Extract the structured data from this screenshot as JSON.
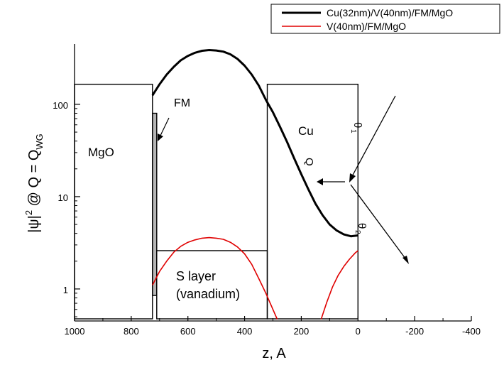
{
  "chart_data": {
    "type": "line",
    "xlabel": "z, A",
    "ylabel": "|ψ|² @ Q = Q_WG",
    "ylabel_parts": {
      "psi": "|ψ|",
      "sq": "2",
      "mid": " @ Q = Q",
      "sub": "WG"
    },
    "x_axis": {
      "range": [
        1000,
        -400
      ],
      "ticks": [
        1000,
        800,
        600,
        400,
        200,
        0,
        -200,
        -400
      ],
      "reversed": true
    },
    "y_axis": {
      "scale": "log",
      "range": [
        0.45,
        450
      ],
      "ticks": [
        1,
        10,
        100
      ],
      "tick_labels": [
        "1",
        "10",
        "100"
      ]
    },
    "series": [
      {
        "name": "Cu(32nm)/V(40nm)/FM/MgO",
        "color": "#000000",
        "points": [
          [
            725,
            125
          ],
          [
            700,
            165
          ],
          [
            675,
            210
          ],
          [
            650,
            255
          ],
          [
            625,
            300
          ],
          [
            600,
            335
          ],
          [
            575,
            362
          ],
          [
            550,
            380
          ],
          [
            525,
            387
          ],
          [
            500,
            383
          ],
          [
            475,
            372
          ],
          [
            450,
            348
          ],
          [
            425,
            310
          ],
          [
            400,
            262
          ],
          [
            375,
            210
          ],
          [
            350,
            160
          ],
          [
            325,
            112
          ],
          [
            300,
            82
          ],
          [
            275,
            57
          ],
          [
            250,
            39
          ],
          [
            225,
            26
          ],
          [
            200,
            17.5
          ],
          [
            175,
            12
          ],
          [
            150,
            8.4
          ],
          [
            125,
            6.3
          ],
          [
            100,
            5.0
          ],
          [
            75,
            4.3
          ],
          [
            50,
            3.9
          ],
          [
            25,
            3.72
          ],
          [
            0,
            3.8
          ]
        ]
      },
      {
        "name": "V(40nm)/FM/MgO",
        "color": "#e00000",
        "points": [
          [
            725,
            1.1
          ],
          [
            700,
            1.55
          ],
          [
            675,
            2.0
          ],
          [
            650,
            2.5
          ],
          [
            625,
            2.9
          ],
          [
            600,
            3.2
          ],
          [
            575,
            3.4
          ],
          [
            550,
            3.55
          ],
          [
            525,
            3.6
          ],
          [
            500,
            3.55
          ],
          [
            475,
            3.45
          ],
          [
            450,
            3.2
          ],
          [
            425,
            2.85
          ],
          [
            400,
            2.4
          ],
          [
            375,
            1.85
          ],
          [
            350,
            1.3
          ],
          [
            325,
            0.9
          ],
          [
            300,
            0.6
          ],
          [
            285,
            0.47
          ]
        ],
        "points2": [
          [
            130,
            0.47
          ],
          [
            110,
            0.72
          ],
          [
            90,
            1.05
          ],
          [
            70,
            1.4
          ],
          [
            50,
            1.75
          ],
          [
            30,
            2.1
          ],
          [
            10,
            2.45
          ],
          [
            0,
            2.6
          ]
        ]
      }
    ],
    "legend": {
      "position": "top-right"
    },
    "annotations": {
      "mgo": "MgO",
      "fm": "FM",
      "cu": "Cu",
      "s_layer_1": "S layer",
      "s_layer_2": "(vanadium)",
      "q": "Q",
      "theta": "θ",
      "theta1_sub": "1",
      "theta2_sub": "2"
    },
    "layers": [
      {
        "label": "MgO",
        "z_start": 1000,
        "z_end": 725,
        "top": 165
      },
      {
        "label": "FM",
        "z_start": 725,
        "z_end": 710,
        "top": 80,
        "fill": "#b5b5b5"
      },
      {
        "label": "S layer (vanadium)",
        "z_start": 710,
        "z_end": 320,
        "top": 2.6
      },
      {
        "label": "Cu",
        "z_start": 320,
        "z_end": 0,
        "top": 165
      }
    ]
  }
}
